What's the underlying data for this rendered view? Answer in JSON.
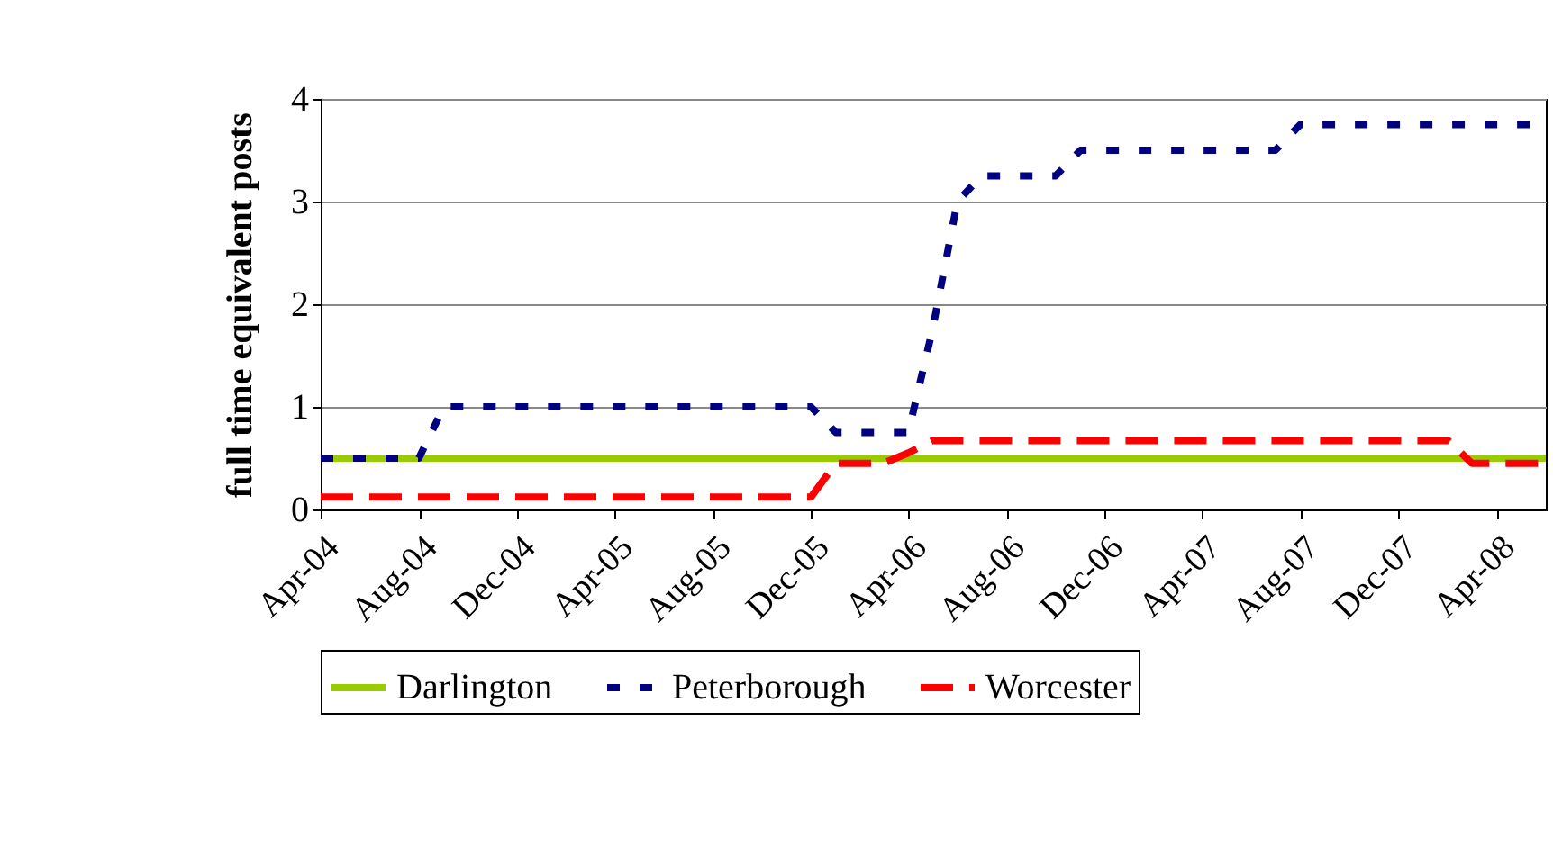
{
  "chart_data": {
    "type": "line",
    "ylabel": "full time equivalent posts",
    "x": [
      "2004-04",
      "2004-05",
      "2004-06",
      "2004-07",
      "2004-08",
      "2004-09",
      "2004-10",
      "2004-11",
      "2004-12",
      "2005-01",
      "2005-02",
      "2005-03",
      "2005-04",
      "2005-05",
      "2005-06",
      "2005-07",
      "2005-08",
      "2005-09",
      "2005-10",
      "2005-11",
      "2005-12",
      "2006-01",
      "2006-02",
      "2006-03",
      "2006-04",
      "2006-05",
      "2006-06",
      "2006-07",
      "2006-08",
      "2006-09",
      "2006-10",
      "2006-11",
      "2006-12",
      "2007-01",
      "2007-02",
      "2007-03",
      "2007-04",
      "2007-05",
      "2007-06",
      "2007-07",
      "2007-08",
      "2007-09",
      "2007-10",
      "2007-11",
      "2007-12",
      "2008-01",
      "2008-02",
      "2008-03",
      "2008-04",
      "2008-05",
      "2008-06"
    ],
    "series": [
      {
        "name": "Darlington",
        "color": "#99cc00",
        "line_style": "solid",
        "values": [
          0.5,
          0.5,
          0.5,
          0.5,
          0.5,
          0.5,
          0.5,
          0.5,
          0.5,
          0.5,
          0.5,
          0.5,
          0.5,
          0.5,
          0.5,
          0.5,
          0.5,
          0.5,
          0.5,
          0.5,
          0.5,
          0.5,
          0.5,
          0.5,
          0.5,
          0.5,
          0.5,
          0.5,
          0.5,
          0.5,
          0.5,
          0.5,
          0.5,
          0.5,
          0.5,
          0.5,
          0.5,
          0.5,
          0.5,
          0.5,
          0.5,
          0.5,
          0.5,
          0.5,
          0.5,
          0.5,
          0.5,
          0.5,
          0.5,
          0.5,
          0.5
        ]
      },
      {
        "name": "Peterborough",
        "color": "#000080",
        "line_style": "dotted",
        "values": [
          0.5,
          0.5,
          0.5,
          0.5,
          0.5,
          1,
          1,
          1,
          1,
          1,
          1,
          1,
          1,
          1,
          1,
          1,
          1,
          1,
          1,
          1,
          1,
          0.75,
          0.75,
          0.75,
          0.75,
          1.75,
          3,
          3.25,
          3.25,
          3.25,
          3.25,
          3.5,
          3.5,
          3.5,
          3.5,
          3.5,
          3.5,
          3.5,
          3.5,
          3.5,
          3.75,
          3.75,
          3.75,
          3.75,
          3.75,
          3.75,
          3.75,
          3.75,
          3.75,
          3.75,
          3.75
        ]
      },
      {
        "name": "Worcester",
        "color": "#ff0000",
        "line_style": "dashed",
        "values": [
          0.12,
          0.12,
          0.12,
          0.12,
          0.12,
          0.12,
          0.12,
          0.12,
          0.12,
          0.12,
          0.12,
          0.12,
          0.12,
          0.12,
          0.12,
          0.12,
          0.12,
          0.12,
          0.12,
          0.12,
          0.12,
          0.45,
          0.45,
          0.45,
          0.55,
          0.67,
          0.67,
          0.67,
          0.67,
          0.67,
          0.67,
          0.67,
          0.67,
          0.67,
          0.67,
          0.67,
          0.67,
          0.67,
          0.67,
          0.67,
          0.67,
          0.67,
          0.67,
          0.67,
          0.67,
          0.67,
          0.67,
          0.45,
          0.45,
          0.45,
          0.45
        ]
      }
    ],
    "xlim": [
      "2004-04",
      "2008-06"
    ],
    "xticks": [
      {
        "value": "2004-04",
        "label": "Apr-04"
      },
      {
        "value": "2004-08",
        "label": "Aug-04"
      },
      {
        "value": "2004-12",
        "label": "Dec-04"
      },
      {
        "value": "2005-04",
        "label": "Apr-05"
      },
      {
        "value": "2005-08",
        "label": "Aug-05"
      },
      {
        "value": "2005-12",
        "label": "Dec-05"
      },
      {
        "value": "2006-04",
        "label": "Apr-06"
      },
      {
        "value": "2006-08",
        "label": "Aug-06"
      },
      {
        "value": "2006-12",
        "label": "Dec-06"
      },
      {
        "value": "2007-04",
        "label": "Apr-07"
      },
      {
        "value": "2007-08",
        "label": "Aug-07"
      },
      {
        "value": "2007-12",
        "label": "Dec-07"
      },
      {
        "value": "2008-04",
        "label": "Apr-08"
      }
    ],
    "ylim": [
      0,
      4
    ],
    "yticks": [
      0,
      1,
      2,
      3,
      4
    ],
    "grid": "y",
    "legend": "bottom",
    "marker": "none"
  }
}
